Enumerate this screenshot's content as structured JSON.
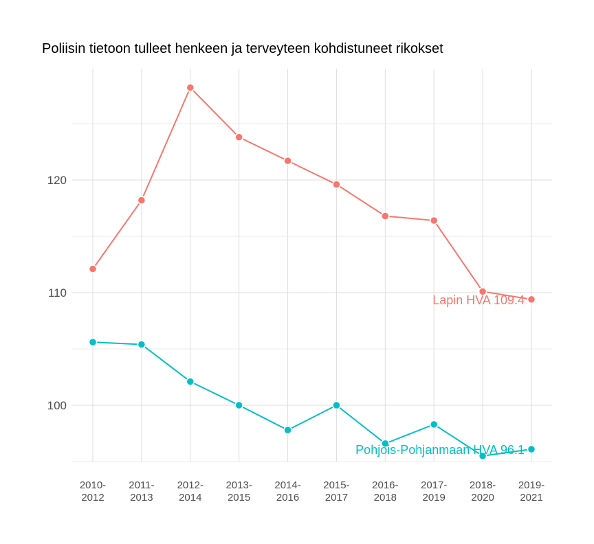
{
  "chart_data": {
    "type": "line",
    "title": "Poliisin tietoon tulleet henkeen ja terveyteen kohdistuneet rikokset",
    "xlabel": "",
    "ylabel": "",
    "categories": [
      "2010-2012",
      "2011-2013",
      "2012-2014",
      "2013-2015",
      "2014-2016",
      "2015-2017",
      "2016-2018",
      "2017-2019",
      "2018-2020",
      "2019-2021"
    ],
    "ylim": [
      95,
      130
    ],
    "yticks": [
      100,
      110,
      120
    ],
    "grid": true,
    "legend": "none",
    "series": [
      {
        "name": "Lapin HVA",
        "end_label": "Lapin HVA 109.4",
        "color": "#F8766D",
        "values": [
          112.1,
          118.2,
          128.2,
          123.8,
          121.7,
          119.6,
          116.8,
          116.4,
          110.1,
          109.4
        ]
      },
      {
        "name": "Pohjois-Pohjanmaan HVA",
        "end_label": "Pohjois-Pohjanmaan HVA 96.1",
        "color": "#00BFC4",
        "values": [
          105.6,
          105.4,
          102.1,
          100.0,
          97.8,
          100.0,
          96.6,
          98.3,
          95.5,
          96.1
        ]
      }
    ]
  }
}
